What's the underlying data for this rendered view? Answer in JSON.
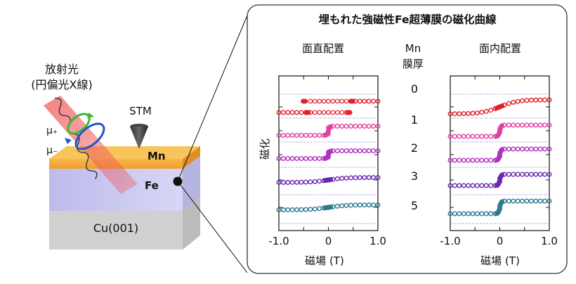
{
  "left": {
    "light_label_line1": "放射光",
    "light_label_line2": "(円偏光X線)",
    "stm_label": "STM",
    "mu_plus": "μ₊",
    "mu_minus": "μ₋",
    "layers": {
      "mn": "Mn",
      "fe": "Fe",
      "cu": "Cu(001)"
    },
    "colors": {
      "mn": "#f3a93a",
      "fe": "#c8c6ef",
      "cu": "#d0d0d0",
      "beam": "#ee5a5a",
      "arrow_green": "#33bb33",
      "arrow_blue": "#2255cc"
    }
  },
  "panel": {
    "title": "埋もれた強磁性Fe超薄膜の磁化曲線",
    "ylabel": "磁化",
    "perp_title": "面直配置",
    "inplane_title": "面内配置",
    "mn_header_line1": "Mn",
    "mn_header_line2": "膜厚",
    "xlabel_left": "磁場 (T)",
    "xlabel_right": "磁場 (T)",
    "xticks": [
      "-1.0",
      "0",
      "1.0"
    ]
  },
  "chart_data": [
    {
      "type": "scatter",
      "title": "面直配置",
      "xlabel": "磁場 (T)",
      "ylabel": "磁化",
      "xlim": [
        -1.0,
        1.0
      ],
      "series_labels": [
        "0",
        "1",
        "2",
        "3",
        "5"
      ],
      "series": [
        {
          "name": "0",
          "color": "#e0202a",
          "kind": "square_loop",
          "coercive": 0.45,
          "amp": 0.8
        },
        {
          "name": "1",
          "color": "#e040a0",
          "kind": "sharp",
          "coercive": 0.05,
          "amp": 0.65
        },
        {
          "name": "2",
          "color": "#b030c0",
          "kind": "sharp",
          "coercive": 0.05,
          "amp": 0.55
        },
        {
          "name": "3",
          "color": "#6a28b0",
          "kind": "smooth",
          "coercive": 0.05,
          "amp": 0.35
        },
        {
          "name": "5",
          "color": "#2a7890",
          "kind": "smooth",
          "coercive": 0.05,
          "amp": 0.35
        }
      ]
    },
    {
      "type": "scatter",
      "title": "面内配置",
      "xlabel": "磁場 (T)",
      "ylabel": "磁化",
      "xlim": [
        -1.0,
        1.0
      ],
      "series_labels": [
        "0",
        "1",
        "2",
        "3",
        "5"
      ],
      "series": [
        {
          "name": "0",
          "color": "#e0202a",
          "kind": "smooth",
          "coercive": 0.0,
          "amp": 1.0
        },
        {
          "name": "1",
          "color": "#e040a0",
          "kind": "step",
          "coercive": 0.02,
          "amp": 0.8
        },
        {
          "name": "2",
          "color": "#b030c0",
          "kind": "step",
          "coercive": 0.02,
          "amp": 0.8
        },
        {
          "name": "3",
          "color": "#6a28b0",
          "kind": "step",
          "coercive": 0.02,
          "amp": 0.8
        },
        {
          "name": "5",
          "color": "#2a7890",
          "kind": "step",
          "coercive": 0.02,
          "amp": 0.9
        }
      ]
    }
  ]
}
